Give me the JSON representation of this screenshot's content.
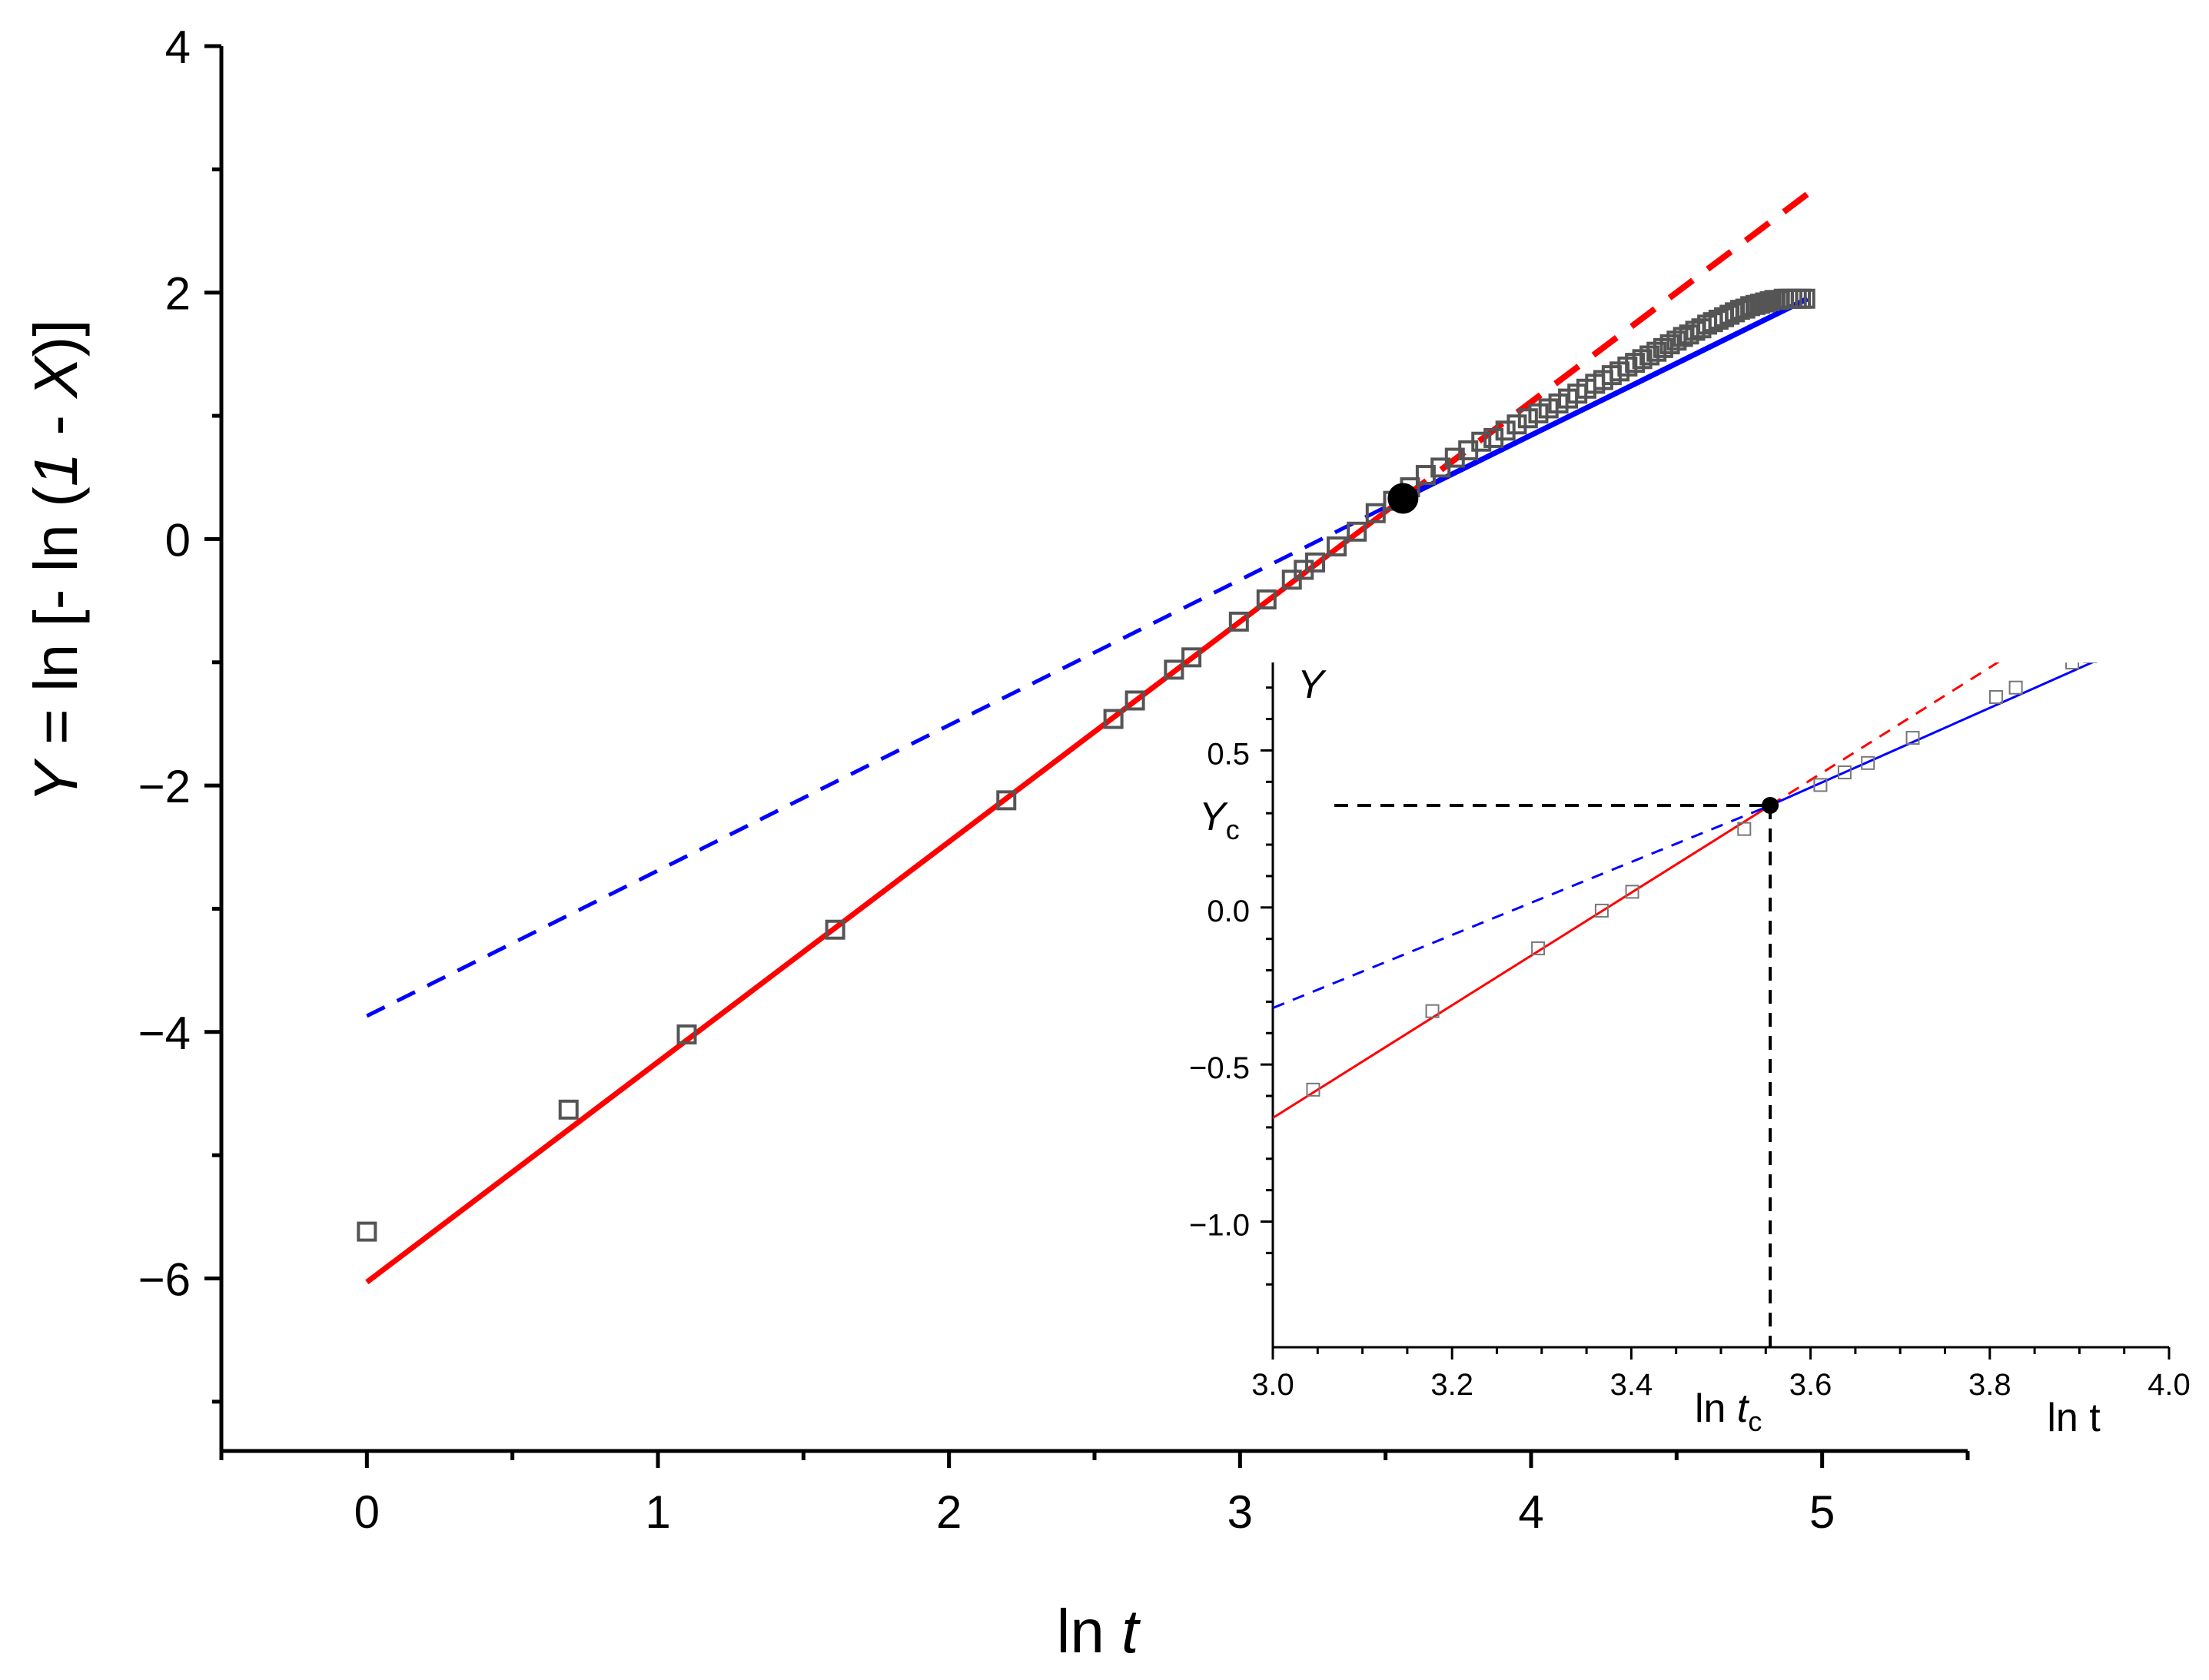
{
  "chart_data": [
    {
      "type": "scatter",
      "xlabel": {
        "prefix": "ln ",
        "var": "t"
      },
      "ylabel": {
        "var": "Y",
        "rest1": " = ln [- ln (",
        "num": "1",
        "rest2": " - ",
        "var2": "X",
        "rest3": ")]"
      },
      "xlim": [
        -0.5,
        5.5
      ],
      "ylim": [
        -7.4,
        4
      ],
      "x_ticks": [
        0,
        1,
        2,
        3,
        4,
        5
      ],
      "y_ticks": [
        4,
        2,
        0,
        -2,
        -4,
        -6
      ],
      "y_tick_labels": [
        "4",
        "2",
        "0",
        "−2",
        "−4",
        "−6"
      ],
      "grid": false,
      "colors": {
        "red": "#ff0000",
        "blue": "#0000ff",
        "markers": "#555555",
        "point": "#000000"
      },
      "series": [
        {
          "marker": "open-square",
          "x": [
            0,
            0.693,
            1.099,
            1.609,
            2.197,
            2.565,
            2.639,
            2.773,
            2.833,
            2.996,
            3.091,
            3.178,
            3.219,
            3.258,
            3.332,
            3.401,
            3.466,
            3.526,
            3.584,
            3.638,
            3.689,
            3.738,
            3.784,
            3.829,
            3.871,
            3.912,
            3.951,
            3.989,
            4.025,
            4.06,
            4.094,
            4.127,
            4.159,
            4.19,
            4.22,
            4.248,
            4.277,
            4.304,
            4.331,
            4.357,
            4.382,
            4.407,
            4.431,
            4.454,
            4.477,
            4.5,
            4.522,
            4.543,
            4.564,
            4.585,
            4.605,
            4.625,
            4.644,
            4.663,
            4.682,
            4.7,
            4.718,
            4.736,
            4.753,
            4.771,
            4.787,
            4.804,
            4.82,
            4.836,
            4.852,
            4.868,
            4.883,
            4.898,
            4.913,
            4.927,
            4.942
          ],
          "y": [
            -5.62,
            -4.63,
            -4.02,
            -3.17,
            -2.12,
            -1.46,
            -1.31,
            -1.06,
            -0.96,
            -0.67,
            -0.49,
            -0.33,
            -0.25,
            -0.19,
            -0.06,
            0.06,
            0.21,
            0.31,
            0.42,
            0.52,
            0.58,
            0.66,
            0.72,
            0.79,
            0.82,
            0.88,
            0.93,
            0.98,
            1.02,
            1.06,
            1.1,
            1.14,
            1.18,
            1.22,
            1.26,
            1.29,
            1.33,
            1.36,
            1.4,
            1.43,
            1.46,
            1.49,
            1.52,
            1.55,
            1.58,
            1.61,
            1.64,
            1.66,
            1.69,
            1.71,
            1.74,
            1.76,
            1.78,
            1.8,
            1.82,
            1.84,
            1.86,
            1.87,
            1.89,
            1.9,
            1.91,
            1.92,
            1.93,
            1.94,
            1.94,
            1.95,
            1.95,
            1.95,
            1.95,
            1.95,
            1.95
          ]
        },
        {
          "color": "red",
          "style": "solid",
          "x": [
            0,
            3.56
          ],
          "y": [
            -6.03,
            0.33
          ]
        },
        {
          "color": "red",
          "style": "dashed",
          "x": [
            3.56,
            4.95
          ],
          "y": [
            0.33,
            2.8
          ]
        },
        {
          "color": "blue",
          "style": "solid",
          "x": [
            3.56,
            4.95
          ],
          "y": [
            0.33,
            1.95
          ]
        },
        {
          "color": "blue",
          "style": "dashed",
          "x": [
            0,
            3.56
          ],
          "y": [
            -3.87,
            0.33
          ]
        },
        {
          "marker": "filled-circle",
          "x": [
            3.56
          ],
          "y": [
            0.33
          ]
        }
      ]
    },
    {
      "type": "scatter",
      "inset": true,
      "xlabel": "ln t",
      "ylabel": "Y",
      "xlim": [
        3.0,
        4.0
      ],
      "ylim": [
        -1.4,
        0.78
      ],
      "x_ticks": [
        3.0,
        3.2,
        3.4,
        3.6,
        3.8,
        4.0
      ],
      "x_tick_labels": [
        "3.0",
        "3.2",
        "3.4",
        "3.6",
        "3.8",
        "4.0"
      ],
      "y_ticks": [
        0.5,
        0.0,
        -0.5,
        -1.0
      ],
      "y_tick_labels": [
        "0.5",
        "0.0",
        "−0.5",
        "−1.0"
      ],
      "annotations": {
        "yc": {
          "var": "Y",
          "sub": "c"
        },
        "tc": {
          "prefix": "ln ",
          "var": "t",
          "sub": "c"
        }
      },
      "critical_point": {
        "x": 3.555,
        "y": 0.325
      },
      "series": [
        {
          "marker": "open-square",
          "x": [
            3.045,
            3.178,
            3.296,
            3.367,
            3.401,
            3.526,
            3.611,
            3.638,
            3.664,
            3.714,
            3.807,
            3.829,
            3.892,
            3.912
          ],
          "y": [
            -0.58,
            -0.33,
            -0.13,
            -0.01,
            0.05,
            0.25,
            0.39,
            0.43,
            0.46,
            0.54,
            0.67,
            0.7,
            0.78,
            0.8
          ]
        },
        {
          "color": "red",
          "style": "solid",
          "x": [
            3.0,
            3.555
          ],
          "y": [
            -0.67,
            0.325
          ]
        },
        {
          "color": "red",
          "style": "dashed",
          "x": [
            3.555,
            3.82
          ],
          "y": [
            0.325,
            0.8
          ]
        },
        {
          "color": "blue",
          "style": "solid",
          "x": [
            3.555,
            3.93
          ],
          "y": [
            0.325,
            0.8
          ]
        },
        {
          "color": "blue",
          "style": "dashed",
          "x": [
            3.0,
            3.555
          ],
          "y": [
            -0.32,
            0.325
          ]
        }
      ]
    }
  ]
}
